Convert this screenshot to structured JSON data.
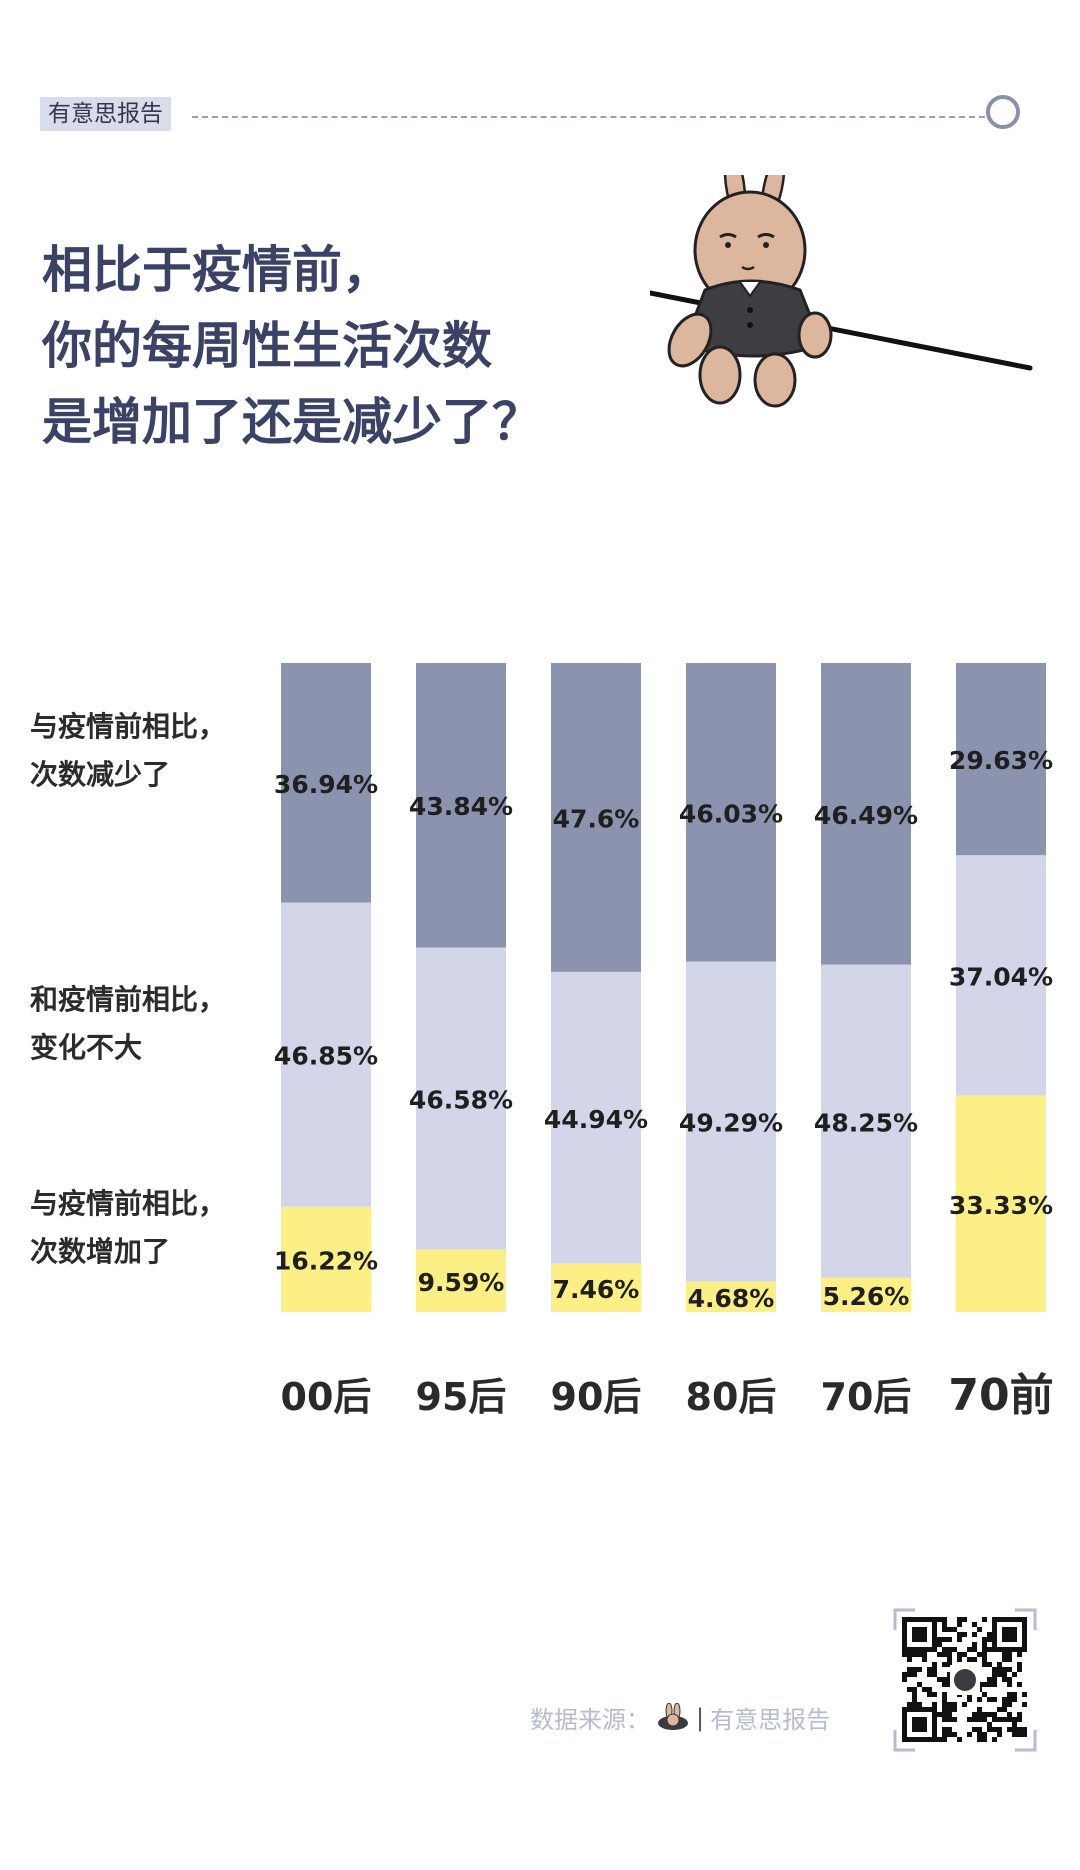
{
  "header": {
    "brand_tag": "有意思报告"
  },
  "title_lines": [
    "相比于疫情前，",
    "你的每周性生活次数",
    "是增加了还是减少了？"
  ],
  "legend": {
    "decreased": [
      "与疫情前相比，",
      "次数减少了"
    ],
    "same": [
      "和疫情前相比，",
      "变化不大"
    ],
    "increased": [
      "与疫情前相比，",
      "次数增加了"
    ]
  },
  "chart_data": {
    "type": "bar",
    "stacked": true,
    "categories": [
      "00后",
      "95后",
      "90后",
      "80后",
      "70后",
      "70前"
    ],
    "series": [
      {
        "name": "与疫情前相比，次数减少了",
        "values": [
          36.94,
          43.84,
          47.6,
          46.03,
          46.49,
          29.63
        ],
        "labels": [
          "36.94%",
          "43.84%",
          "47.6%",
          "46.03%",
          "46.49%",
          "29.63%"
        ],
        "color": "#8b93af"
      },
      {
        "name": "和疫情前相比，变化不大",
        "values": [
          46.85,
          46.58,
          44.94,
          49.29,
          48.25,
          37.04
        ],
        "labels": [
          "46.85%",
          "46.58%",
          "44.94%",
          "49.29%",
          "48.25%",
          "37.04%"
        ],
        "color": "#d2d6e8"
      },
      {
        "name": "与疫情前相比，次数增加了",
        "values": [
          16.22,
          9.59,
          7.46,
          4.68,
          5.26,
          33.33
        ],
        "labels": [
          "16.22%",
          "9.59%",
          "7.46%",
          "4.68%",
          "5.26%",
          "33.33%"
        ],
        "color": "#fbef86"
      }
    ],
    "ylim": [
      0,
      100
    ]
  },
  "footer": {
    "source_label": "数据来源：",
    "divider": "|",
    "source_name": "有意思报告"
  }
}
